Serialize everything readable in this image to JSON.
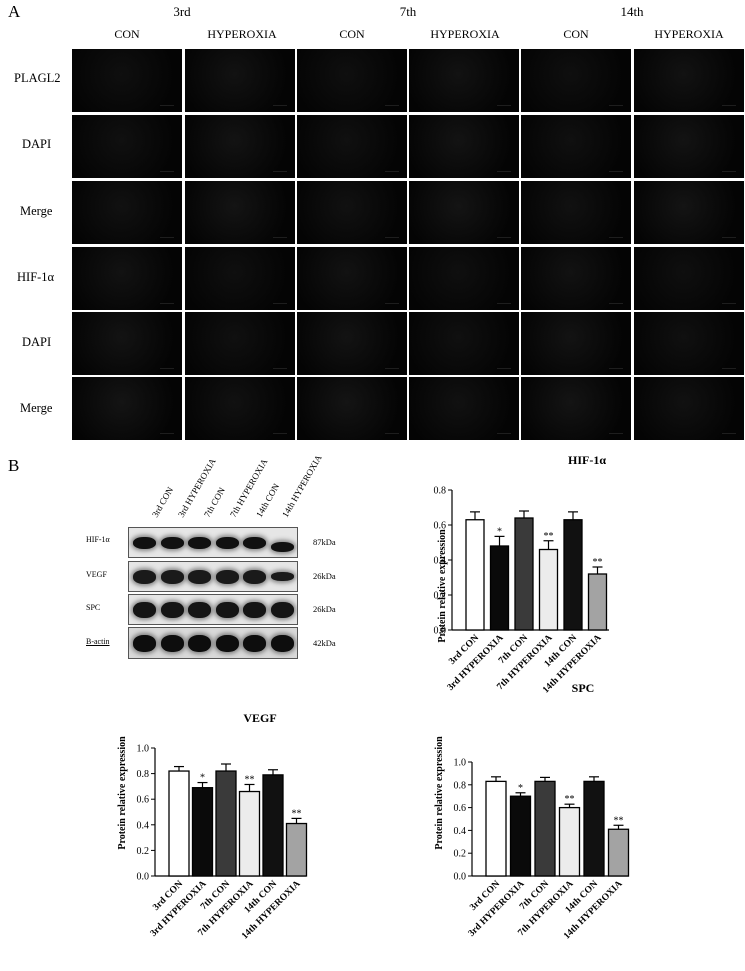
{
  "figure": {
    "panel_a_label": "A",
    "panel_b_label": "B"
  },
  "panel_a": {
    "days": [
      "3rd",
      "7th",
      "14th"
    ],
    "conditions": [
      "CON",
      "HYPEROXIA",
      "CON",
      "HYPEROXIA",
      "CON",
      "HYPEROXIA"
    ],
    "rows": [
      "PLAGL2",
      "DAPI",
      "Merge",
      "HIF-1α",
      "DAPI",
      "Merge"
    ]
  },
  "western_blot": {
    "lanes": [
      "3rd CON",
      "3rd HYPEROXIA",
      "7th CON",
      "7th HYPEROXIA",
      "14th CON",
      "14th HYPEROXIA"
    ],
    "proteins": [
      {
        "name": "HIF-1α",
        "kda": "87kDa"
      },
      {
        "name": "VEGF",
        "kda": "26kDa"
      },
      {
        "name": "SPC",
        "kda": "26kDa"
      },
      {
        "name": "Β-actin",
        "kda": "42kDa"
      }
    ]
  },
  "chart_data": [
    {
      "type": "bar",
      "title": "HIF-1α",
      "ylabel": "Protein relative expression",
      "xlabel": "",
      "categories": [
        "3rd CON",
        "3rd HYPEROXIA",
        "7th CON",
        "7th HYPEROXIA",
        "14th CON",
        "14th HYPEROXIA"
      ],
      "values": [
        0.63,
        0.48,
        0.64,
        0.46,
        0.63,
        0.32
      ],
      "errors": [
        0.045,
        0.055,
        0.04,
        0.05,
        0.045,
        0.04
      ],
      "significance": [
        "",
        "*",
        "",
        "**",
        "",
        "**"
      ],
      "ylim": [
        0,
        0.8
      ],
      "yticks": [
        "0.0",
        "0.2",
        "0.4",
        "0.6",
        "0.8"
      ],
      "colors": [
        "#ffffff",
        "#0a0a0a",
        "#3a3a3a",
        "#ececec",
        "#111111",
        "#a3a3a3"
      ]
    },
    {
      "type": "bar",
      "title": "VEGF",
      "ylabel": "Protein relative expression",
      "xlabel": "",
      "categories": [
        "3rd CON",
        "3rd HYPEROXIA",
        "7th CON",
        "7th HYPEROXIA",
        "14th CON",
        "14th HYPEROXIA"
      ],
      "values": [
        0.82,
        0.69,
        0.82,
        0.66,
        0.79,
        0.41
      ],
      "errors": [
        0.035,
        0.04,
        0.055,
        0.055,
        0.04,
        0.04
      ],
      "significance": [
        "",
        "*",
        "",
        "**",
        "",
        "**"
      ],
      "ylim": [
        0,
        1.0
      ],
      "yticks": [
        "0.0",
        "0.2",
        "0.4",
        "0.6",
        "0.8",
        "1.0"
      ],
      "colors": [
        "#ffffff",
        "#0a0a0a",
        "#3a3a3a",
        "#ececec",
        "#111111",
        "#a3a3a3"
      ]
    },
    {
      "type": "bar",
      "title": "SPC",
      "ylabel": "Protein relative expression",
      "xlabel": "",
      "categories": [
        "3rd CON",
        "3rd HYPEROXIA",
        "7th CON",
        "7th HYPEROXIA",
        "14th CON",
        "14th HYPEROXIA"
      ],
      "values": [
        0.83,
        0.7,
        0.83,
        0.6,
        0.83,
        0.41
      ],
      "errors": [
        0.04,
        0.03,
        0.035,
        0.03,
        0.04,
        0.035
      ],
      "significance": [
        "",
        "*",
        "",
        "**",
        "",
        "**"
      ],
      "ylim": [
        0,
        1.0
      ],
      "yticks": [
        "0.0",
        "0.2",
        "0.4",
        "0.6",
        "0.8",
        "1.0"
      ],
      "colors": [
        "#ffffff",
        "#0a0a0a",
        "#3a3a3a",
        "#ececec",
        "#111111",
        "#a3a3a3"
      ]
    }
  ]
}
